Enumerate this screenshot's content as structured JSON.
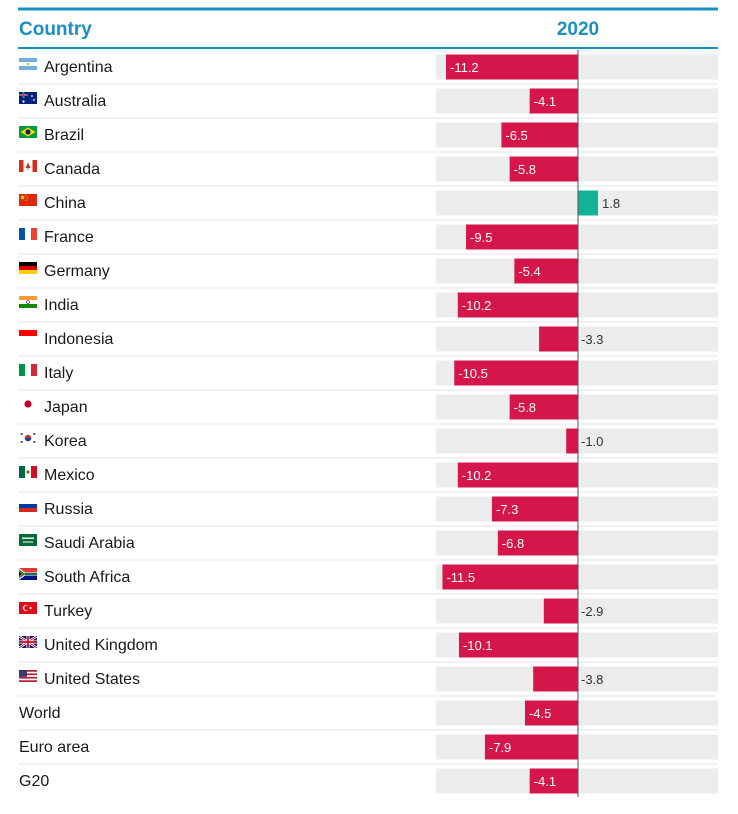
{
  "header": {
    "column_label": "Country",
    "year_label": "2020"
  },
  "colors": {
    "header_text": "#1a8fc4",
    "negative": "#d4164a",
    "positive": "#12b394",
    "track": "#ececec"
  },
  "chart_data": {
    "type": "bar",
    "orientation": "horizontal",
    "categories": [
      "Argentina",
      "Australia",
      "Brazil",
      "Canada",
      "China",
      "France",
      "Germany",
      "India",
      "Indonesia",
      "Italy",
      "Japan",
      "Korea",
      "Mexico",
      "Russia",
      "Saudi Arabia",
      "South Africa",
      "Turkey",
      "United Kingdom",
      "United States",
      "World",
      "Euro area",
      "G20"
    ],
    "flags": [
      "argentina-flag-icon",
      "australia-flag-icon",
      "brazil-flag-icon",
      "canada-flag-icon",
      "china-flag-icon",
      "france-flag-icon",
      "germany-flag-icon",
      "india-flag-icon",
      "indonesia-flag-icon",
      "italy-flag-icon",
      "japan-flag-icon",
      "korea-flag-icon",
      "mexico-flag-icon",
      "russia-flag-icon",
      "saudi-arabia-flag-icon",
      "south-africa-flag-icon",
      "turkey-flag-icon",
      "united-kingdom-flag-icon",
      "united-states-flag-icon",
      "",
      "",
      ""
    ],
    "values": [
      -11.2,
      -4.1,
      -6.5,
      -5.8,
      1.8,
      -9.5,
      -5.4,
      -10.2,
      -3.3,
      -10.5,
      -5.8,
      -1.0,
      -10.2,
      -7.3,
      -6.8,
      -11.5,
      -2.9,
      -10.1,
      -3.8,
      -4.5,
      -7.9,
      -4.1
    ],
    "labels": [
      "-11.2",
      "-4.1",
      "-6.5",
      "-5.8",
      "1.8",
      "-9.5",
      "-5.4",
      "-10.2",
      "-3.3",
      "-10.5",
      "-5.8",
      "-1.0",
      "-10.2",
      "-7.3",
      "-6.8",
      "-11.5",
      "-2.9",
      "-10.1",
      "-3.8",
      "-4.5",
      "-7.9",
      "-4.1"
    ],
    "xlim": [
      -12,
      12
    ],
    "grid": false,
    "legend": "none"
  }
}
